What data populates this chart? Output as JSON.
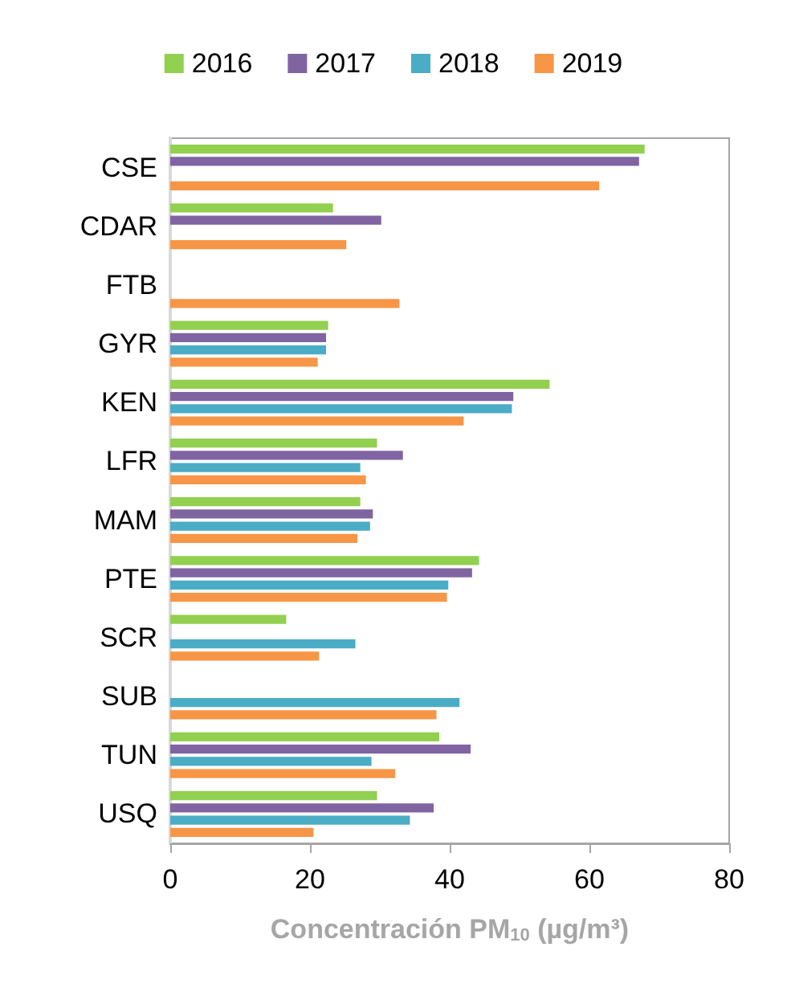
{
  "chart_data": {
    "type": "bar",
    "orientation": "horizontal",
    "xlabel": "Concentración PM$_{10}$ (µg/m³)",
    "categories": [
      "CSE",
      "CDAR",
      "FTB",
      "GYR",
      "KEN",
      "LFR",
      "MAM",
      "PTE",
      "SCR",
      "SUB",
      "TUN",
      "USQ"
    ],
    "series": [
      {
        "name": "2016",
        "color": "#92d050",
        "values": [
          67.9,
          23.3,
          null,
          22.6,
          54.3,
          29.6,
          27.2,
          44.2,
          16.6,
          null,
          38.5,
          29.6
        ]
      },
      {
        "name": "2017",
        "color": "#8064a2",
        "values": [
          67.1,
          30.2,
          null,
          22.3,
          49.1,
          33.3,
          29.0,
          43.2,
          null,
          null,
          43.0,
          37.7
        ]
      },
      {
        "name": "2018",
        "color": "#4bacc6",
        "values": [
          null,
          null,
          null,
          22.3,
          48.9,
          27.2,
          28.6,
          39.8,
          26.5,
          41.4,
          28.8,
          34.3
        ]
      },
      {
        "name": "2019",
        "color": "#f79646",
        "values": [
          61.4,
          25.2,
          32.8,
          21.1,
          42.0,
          28.0,
          26.8,
          39.6,
          21.3,
          38.1,
          32.2,
          20.5
        ]
      }
    ],
    "xlim": [
      0,
      80
    ],
    "xticks": [
      0,
      20,
      40,
      60,
      80
    ],
    "grid": false,
    "legend": "top"
  }
}
